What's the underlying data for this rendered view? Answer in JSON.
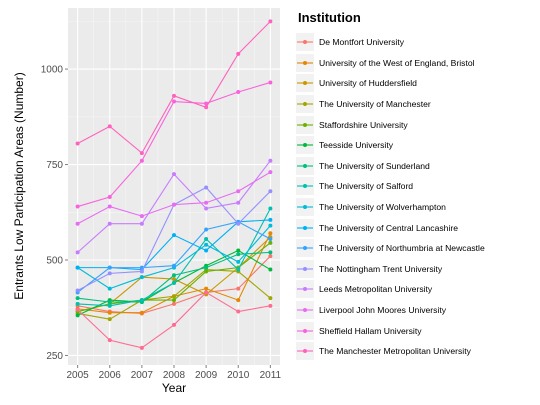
{
  "chart_data": {
    "type": "line",
    "xlabel": "Year",
    "ylabel": "Entrants Low Participation Areas (Number)",
    "x": [
      2005,
      2006,
      2007,
      2008,
      2009,
      2010,
      2011
    ],
    "y_ticks": [
      250,
      500,
      750,
      1000
    ],
    "ylim": [
      225,
      1160
    ],
    "grid": true,
    "legend_title": "Institution",
    "legend_position": "right",
    "series": [
      {
        "name": "De Montfort University",
        "color": "#F8766D",
        "values": [
          380,
          365,
          360,
          385,
          415,
          425,
          510
        ]
      },
      {
        "name": "University of the West of England, Bristol",
        "color": "#E58700",
        "values": [
          372,
          362,
          362,
          405,
          425,
          395,
          570
        ]
      },
      {
        "name": "University of Huddersfield",
        "color": "#C99800",
        "values": [
          365,
          385,
          455,
          450,
          410,
          480,
          560
        ]
      },
      {
        "name": "The University of Manchester",
        "color": "#A3A500",
        "values": [
          360,
          345,
          395,
          405,
          475,
          470,
          400
        ]
      },
      {
        "name": "Staffordshire University",
        "color": "#6BB100",
        "values": [
          365,
          385,
          395,
          395,
          470,
          480,
          545
        ]
      },
      {
        "name": "Teesside University",
        "color": "#00BA38",
        "values": [
          355,
          395,
          390,
          440,
          485,
          525,
          475
        ]
      },
      {
        "name": "The University of Sunderland",
        "color": "#00BF7D",
        "values": [
          400,
          390,
          390,
          460,
          480,
          515,
          520
        ]
      },
      {
        "name": "The University of Salford",
        "color": "#00C0AF",
        "values": [
          385,
          380,
          395,
          440,
          555,
          475,
          635
        ]
      },
      {
        "name": "The University of Wolverhampton",
        "color": "#00BCD8",
        "values": [
          480,
          425,
          455,
          480,
          540,
          495,
          590
        ]
      },
      {
        "name": "The University of Central Lancashire",
        "color": "#00B0F6",
        "values": [
          480,
          480,
          475,
          565,
          525,
          600,
          605
        ]
      },
      {
        "name": "The University of Northumbria at Newcastle",
        "color": "#35A2FF",
        "values": [
          415,
          480,
          480,
          485,
          580,
          600,
          555
        ]
      },
      {
        "name": "The Nottingham Trent University",
        "color": "#9590FF",
        "values": [
          420,
          465,
          470,
          645,
          690,
          595,
          680
        ]
      },
      {
        "name": "Leeds Metropolitan University",
        "color": "#C77CFF",
        "values": [
          520,
          595,
          595,
          725,
          635,
          650,
          760
        ]
      },
      {
        "name": "Liverpool John Moores University",
        "color": "#E76BF3",
        "values": [
          595,
          640,
          615,
          645,
          650,
          680,
          730
        ]
      },
      {
        "name": "Sheffield Hallam University",
        "color": "#FA62DB",
        "values": [
          640,
          665,
          760,
          915,
          910,
          940,
          965
        ]
      },
      {
        "name": "The Manchester Metropolitan University",
        "color": "#FF62BC",
        "values": [
          805,
          850,
          780,
          930,
          900,
          1040,
          1125
        ]
      },
      {
        "name": "",
        "color": "#FF6C91",
        "values": [
          370,
          290,
          270,
          330,
          415,
          365,
          380
        ]
      }
    ]
  }
}
